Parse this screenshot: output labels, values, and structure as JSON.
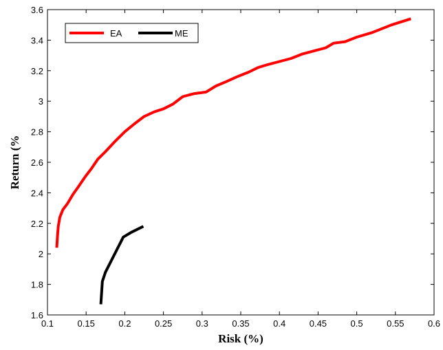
{
  "chart_data": {
    "type": "line",
    "xlabel": "Risk (%)",
    "ylabel": "Return (%",
    "xlim": [
      0.1,
      0.6
    ],
    "ylim": [
      1.6,
      3.6
    ],
    "xticks": [
      0.1,
      0.15,
      0.2,
      0.25,
      0.3,
      0.35,
      0.4,
      0.45,
      0.5,
      0.55,
      0.6
    ],
    "xtick_labels": [
      "0.1",
      "0.15",
      "0.2",
      "0.25",
      "0.3",
      "0.35",
      "0.4",
      "0.45",
      "0.5",
      "0.55",
      "0.6"
    ],
    "yticks": [
      1.6,
      1.8,
      2,
      2.2,
      2.4,
      2.6,
      2.8,
      3,
      3.2,
      3.4,
      3.6
    ],
    "ytick_labels": [
      "1.6",
      "1.8",
      "2",
      "2.2",
      "2.4",
      "2.6",
      "2.8",
      "3",
      "3.2",
      "3.4",
      "3.6"
    ],
    "grid": false,
    "legend_position": "top-left",
    "series": [
      {
        "name": "EA",
        "color": "#ff0000",
        "points": [
          [
            0.112,
            2.04
          ],
          [
            0.113,
            2.12
          ],
          [
            0.114,
            2.18
          ],
          [
            0.116,
            2.24
          ],
          [
            0.12,
            2.29
          ],
          [
            0.126,
            2.33
          ],
          [
            0.133,
            2.39
          ],
          [
            0.14,
            2.44
          ],
          [
            0.148,
            2.5
          ],
          [
            0.157,
            2.56
          ],
          [
            0.165,
            2.62
          ],
          [
            0.175,
            2.67
          ],
          [
            0.188,
            2.74
          ],
          [
            0.2,
            2.8
          ],
          [
            0.212,
            2.85
          ],
          [
            0.225,
            2.9
          ],
          [
            0.238,
            2.93
          ],
          [
            0.25,
            2.95
          ],
          [
            0.262,
            2.98
          ],
          [
            0.275,
            3.03
          ],
          [
            0.29,
            3.05
          ],
          [
            0.305,
            3.06
          ],
          [
            0.318,
            3.1
          ],
          [
            0.332,
            3.13
          ],
          [
            0.345,
            3.16
          ],
          [
            0.36,
            3.19
          ],
          [
            0.372,
            3.22
          ],
          [
            0.385,
            3.24
          ],
          [
            0.4,
            3.26
          ],
          [
            0.415,
            3.28
          ],
          [
            0.43,
            3.31
          ],
          [
            0.445,
            3.33
          ],
          [
            0.46,
            3.35
          ],
          [
            0.47,
            3.38
          ],
          [
            0.485,
            3.39
          ],
          [
            0.5,
            3.42
          ],
          [
            0.52,
            3.45
          ],
          [
            0.545,
            3.5
          ],
          [
            0.57,
            3.54
          ]
        ]
      },
      {
        "name": "ME",
        "color": "#000000",
        "points": [
          [
            0.169,
            1.67
          ],
          [
            0.171,
            1.82
          ],
          [
            0.175,
            1.88
          ],
          [
            0.186,
            1.99
          ],
          [
            0.198,
            2.11
          ],
          [
            0.208,
            2.14
          ],
          [
            0.224,
            2.18
          ]
        ]
      }
    ]
  }
}
